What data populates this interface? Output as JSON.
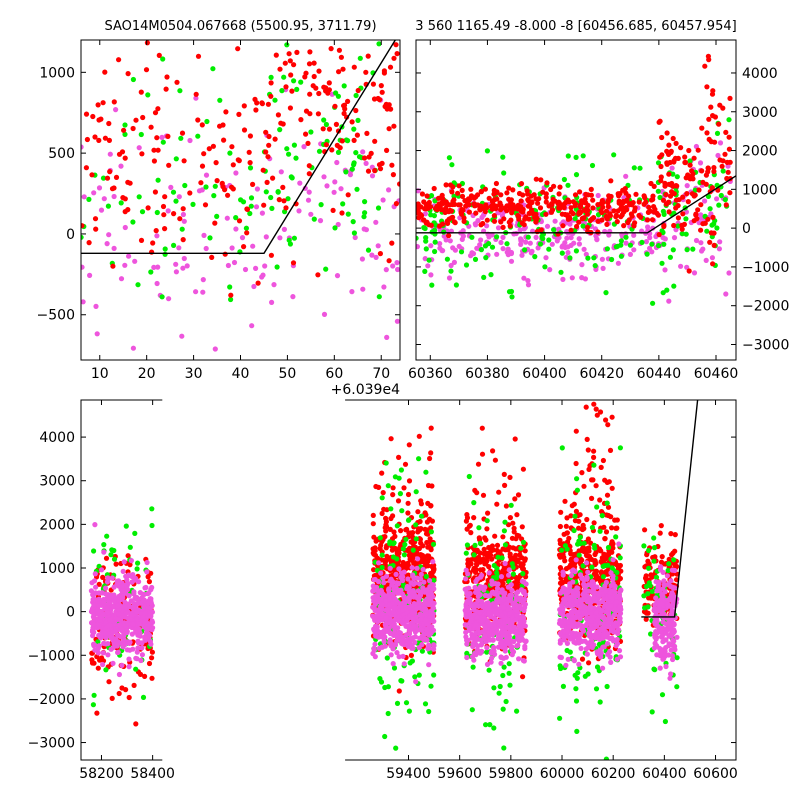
{
  "chart_data": [
    {
      "id": "p1",
      "type": "scatter",
      "title": "SAO14M0504.067668 (5500.95, 3711.79)",
      "xlim": [
        6,
        74
      ],
      "ylim": [
        -780,
        1200
      ],
      "x_offset_label": "+6.039e4",
      "xticks": [
        10,
        20,
        30,
        40,
        50,
        60,
        70
      ],
      "yticks": [
        -500,
        0,
        500,
        1000
      ],
      "yaxis_side": "left",
      "colors": {
        "red": "#ff0000",
        "green": "#00ee00",
        "pink": "#ee55dd",
        "line": "#000000"
      },
      "series": [
        {
          "color": "pink",
          "clusters": [
            {
              "xr": [
                6,
                74
              ],
              "yc": 100,
              "ys": 320,
              "n": 140,
              "seed": 11
            }
          ]
        },
        {
          "color": "green",
          "clusters": [
            {
              "xr": [
                6,
                45
              ],
              "yc": 150,
              "ys": 380,
              "n": 55,
              "seed": 12
            },
            {
              "xr": [
                45,
                70
              ],
              "yc": 420,
              "ys": 320,
              "n": 75,
              "seed": 13
            }
          ]
        },
        {
          "color": "red",
          "clusters": [
            {
              "xr": [
                6,
                45
              ],
              "yc": 520,
              "ys": 420,
              "n": 130,
              "seed": 14
            },
            {
              "xr": [
                45,
                74
              ],
              "yc": 820,
              "ys": 380,
              "n": 160,
              "seed": 15
            }
          ]
        }
      ],
      "model_line": [
        [
          6,
          -120
        ],
        [
          45,
          -120
        ],
        [
          73,
          1200
        ]
      ]
    },
    {
      "id": "p2",
      "type": "scatter",
      "title": "3 560 1165.49 -8.000 -8 [60456.685, 60457.954]",
      "xlim": [
        60355,
        60467
      ],
      "ylim": [
        -3400,
        4850
      ],
      "xticks": [
        60360,
        60380,
        60400,
        60420,
        60440,
        60460
      ],
      "yticks": [
        -3000,
        -2000,
        -1000,
        0,
        1000,
        2000,
        3000,
        4000
      ],
      "yaxis_side": "right",
      "colors": {
        "red": "#ff0000",
        "green": "#00ee00",
        "pink": "#ee55dd",
        "line": "#000000"
      },
      "series": [
        {
          "color": "pink",
          "clusters": [
            {
              "xr": [
                60355,
                60440
              ],
              "yc": -150,
              "ys": 450,
              "n": 260,
              "seed": 21
            },
            {
              "xr": [
                60440,
                60465
              ],
              "yc": 200,
              "ys": 700,
              "n": 60,
              "seed": 22
            }
          ]
        },
        {
          "color": "green",
          "clusters": [
            {
              "xr": [
                60355,
                60440
              ],
              "yc": 100,
              "ys": 700,
              "n": 180,
              "seed": 23
            },
            {
              "xr": [
                60440,
                60465
              ],
              "yc": 600,
              "ys": 900,
              "n": 60,
              "seed": 24
            }
          ]
        },
        {
          "color": "red",
          "clusters": [
            {
              "xr": [
                60355,
                60440
              ],
              "yc": 550,
              "ys": 250,
              "n": 380,
              "seed": 25
            },
            {
              "xr": [
                60440,
                60465
              ],
              "yc": 1200,
              "ys": 700,
              "n": 120,
              "seed": 26
            },
            {
              "xr": [
                60455,
                60465
              ],
              "yc": 3000,
              "ys": 700,
              "n": 18,
              "seed": 27
            }
          ]
        }
      ],
      "model_line": [
        [
          60355,
          -120
        ],
        [
          60436,
          -120
        ],
        [
          60467,
          1350
        ]
      ]
    },
    {
      "id": "p3",
      "type": "scatter",
      "title": "",
      "xlim": [
        58120,
        60680
      ],
      "ylim": [
        -3400,
        4850
      ],
      "xticks": [
        58200,
        58400,
        59400,
        59600,
        59800,
        60000,
        60200,
        60400,
        60600
      ],
      "yticks": [
        -3000,
        -2000,
        -1000,
        0,
        1000,
        2000,
        3000,
        4000
      ],
      "yaxis_side": "left",
      "axis_gap_data": [
        58430,
        59160
      ],
      "colors": {
        "red": "#ff0000",
        "green": "#00ee00",
        "pink": "#ee55dd",
        "line": "#000000"
      },
      "series": [
        {
          "color": "red",
          "clusters": [
            {
              "xr": [
                58160,
                58400
              ],
              "yc": -250,
              "ys": 700,
              "n": 160,
              "seed": 31
            },
            {
              "xr": [
                59260,
                59500
              ],
              "yc": 700,
              "ys": 600,
              "n": 500,
              "seed": 32
            },
            {
              "xr": [
                59270,
                59500
              ],
              "yc": 2000,
              "ys": 1300,
              "n": 60,
              "seed": 33
            },
            {
              "xr": [
                59620,
                59860
              ],
              "yc": 650,
              "ys": 600,
              "n": 380,
              "seed": 34
            },
            {
              "xr": [
                59640,
                59860
              ],
              "yc": 1800,
              "ys": 1200,
              "n": 40,
              "seed": 35
            },
            {
              "xr": [
                59990,
                60230
              ],
              "yc": 700,
              "ys": 650,
              "n": 400,
              "seed": 36
            },
            {
              "xr": [
                60040,
                60200
              ],
              "yc": 2200,
              "ys": 1200,
              "n": 70,
              "seed": 37
            },
            {
              "xr": [
                60320,
                60450
              ],
              "yc": 600,
              "ys": 500,
              "n": 130,
              "seed": 38
            }
          ]
        },
        {
          "color": "green",
          "clusters": [
            {
              "xr": [
                58160,
                58400
              ],
              "yc": 200,
              "ys": 1000,
              "n": 60,
              "seed": 41
            },
            {
              "xr": [
                59260,
                59500
              ],
              "yc": 200,
              "ys": 1300,
              "n": 140,
              "seed": 42
            },
            {
              "xr": [
                59620,
                59860
              ],
              "yc": 100,
              "ys": 1200,
              "n": 110,
              "seed": 43
            },
            {
              "xr": [
                59990,
                60230
              ],
              "yc": 200,
              "ys": 1300,
              "n": 130,
              "seed": 44
            },
            {
              "xr": [
                60320,
                60450
              ],
              "yc": 0,
              "ys": 900,
              "n": 50,
              "seed": 45
            }
          ]
        },
        {
          "color": "pink",
          "clusters": [
            {
              "xr": [
                58160,
                58400
              ],
              "yc": -100,
              "ys": 420,
              "n": 520,
              "seed": 51
            },
            {
              "xr": [
                59260,
                59500
              ],
              "yc": 0,
              "ys": 420,
              "n": 520,
              "seed": 52
            },
            {
              "xr": [
                59620,
                59860
              ],
              "yc": -150,
              "ys": 420,
              "n": 480,
              "seed": 53
            },
            {
              "xr": [
                59990,
                60230
              ],
              "yc": -50,
              "ys": 420,
              "n": 500,
              "seed": 54
            },
            {
              "xr": [
                60360,
                60450
              ],
              "yc": -200,
              "ys": 500,
              "n": 180,
              "seed": 55
            }
          ]
        }
      ],
      "model_line": [
        [
          60310,
          -120
        ],
        [
          60440,
          -120
        ],
        [
          60530,
          4850
        ]
      ]
    }
  ]
}
